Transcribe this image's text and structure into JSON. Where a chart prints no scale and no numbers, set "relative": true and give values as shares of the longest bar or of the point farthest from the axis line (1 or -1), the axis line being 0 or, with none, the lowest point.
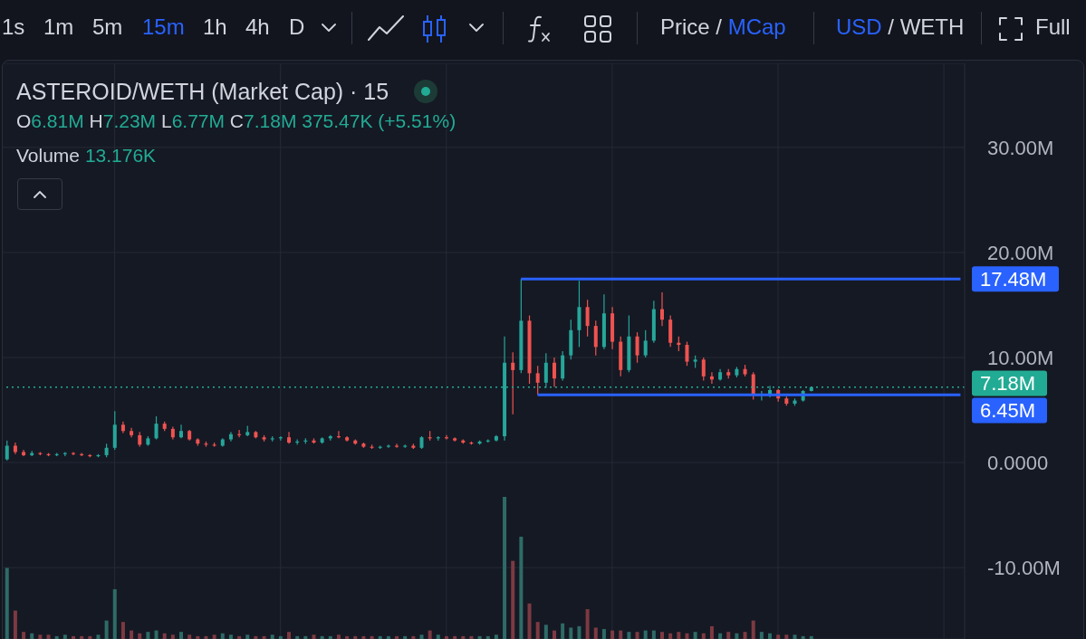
{
  "chart_data": [
    {
      "type": "candlestick",
      "title": "ASTEROID/WETH (Market Cap) · 15",
      "subtitle": "O6.81M H7.23M L6.77M C7.18M 375.47K (+5.51%)",
      "annotations": [
        "1s",
        "1m",
        "5m",
        "15m",
        "1h",
        "4h",
        "D",
        "Price / MCap",
        "USD / WETH",
        "Full",
        "Volume 13.176K"
      ],
      "categories": [
        null,
        null,
        null,
        null,
        null,
        null,
        null,
        null,
        null,
        null,
        null,
        null,
        null,
        null,
        null,
        null,
        null,
        null,
        null,
        null,
        null,
        null,
        null,
        null,
        null,
        null,
        null,
        null,
        null,
        null,
        null,
        null,
        null,
        null,
        null,
        null,
        null,
        null,
        null,
        null,
        null,
        null,
        null,
        null,
        null,
        null,
        null,
        null,
        null,
        null,
        null,
        null,
        null,
        null,
        null,
        null,
        null,
        null,
        null,
        null,
        null,
        null,
        null,
        null,
        null,
        null,
        null,
        null,
        null,
        null,
        null,
        null,
        null,
        null,
        null,
        null,
        null,
        null,
        null,
        null,
        null,
        null,
        null,
        null,
        null,
        null,
        null,
        null,
        null,
        null,
        null,
        null,
        null,
        null,
        null,
        null,
        null,
        null,
        null,
        null,
        null,
        null,
        null,
        null,
        null,
        null,
        null,
        null,
        null,
        null,
        null,
        null,
        null,
        null,
        null,
        null
      ],
      "ohlc": [
        [
          0.3,
          2.1,
          0.2,
          1.6
        ],
        [
          1.6,
          1.9,
          0.8,
          1.0
        ],
        [
          1.0,
          1.2,
          0.6,
          0.7
        ],
        [
          0.7,
          1.1,
          0.6,
          0.9
        ],
        [
          0.9,
          1.0,
          0.7,
          0.8
        ],
        [
          0.8,
          0.9,
          0.6,
          0.7
        ],
        [
          0.7,
          0.9,
          0.6,
          0.8
        ],
        [
          0.8,
          1.0,
          0.6,
          0.9
        ],
        [
          0.9,
          1.0,
          0.7,
          0.8
        ],
        [
          0.8,
          0.9,
          0.6,
          0.7
        ],
        [
          0.7,
          0.8,
          0.5,
          0.6
        ],
        [
          0.6,
          0.8,
          0.5,
          0.7
        ],
        [
          0.7,
          1.8,
          0.5,
          1.4
        ],
        [
          1.4,
          4.9,
          1.2,
          3.6
        ],
        [
          3.6,
          3.9,
          2.8,
          3.0
        ],
        [
          3.0,
          3.3,
          2.4,
          2.6
        ],
        [
          2.6,
          2.9,
          1.5,
          1.7
        ],
        [
          1.7,
          2.5,
          1.6,
          2.3
        ],
        [
          2.3,
          4.4,
          2.2,
          3.7
        ],
        [
          3.7,
          3.9,
          3.0,
          3.2
        ],
        [
          3.2,
          3.4,
          2.2,
          2.4
        ],
        [
          2.4,
          3.6,
          2.3,
          3.0
        ],
        [
          3.0,
          3.1,
          2.1,
          2.2
        ],
        [
          2.2,
          2.3,
          1.6,
          1.8
        ],
        [
          1.8,
          2.0,
          1.5,
          1.7
        ],
        [
          1.7,
          1.9,
          1.5,
          1.6
        ],
        [
          1.6,
          2.3,
          1.5,
          2.2
        ],
        [
          2.2,
          2.9,
          2.0,
          2.7
        ],
        [
          2.7,
          3.1,
          2.4,
          2.6
        ],
        [
          2.6,
          3.5,
          2.5,
          2.9
        ],
        [
          2.9,
          3.0,
          2.3,
          2.4
        ],
        [
          2.4,
          2.6,
          2.0,
          2.2
        ],
        [
          2.2,
          2.5,
          2.0,
          2.3
        ],
        [
          2.3,
          2.5,
          2.1,
          2.4
        ],
        [
          2.4,
          2.9,
          1.8,
          1.9
        ],
        [
          1.9,
          2.2,
          1.7,
          2.0
        ],
        [
          2.0,
          2.3,
          1.8,
          2.1
        ],
        [
          2.1,
          2.3,
          1.8,
          1.9
        ],
        [
          1.9,
          2.4,
          1.8,
          2.3
        ],
        [
          2.3,
          2.6,
          2.1,
          2.5
        ],
        [
          2.5,
          3.0,
          2.3,
          2.4
        ],
        [
          2.4,
          2.5,
          2.0,
          2.1
        ],
        [
          2.1,
          2.2,
          1.7,
          1.8
        ],
        [
          1.8,
          1.9,
          1.4,
          1.5
        ],
        [
          1.5,
          1.7,
          1.3,
          1.4
        ],
        [
          1.4,
          1.6,
          1.3,
          1.5
        ],
        [
          1.5,
          1.7,
          1.4,
          1.6
        ],
        [
          1.6,
          1.8,
          1.4,
          1.5
        ],
        [
          1.5,
          1.7,
          1.4,
          1.6
        ],
        [
          1.6,
          1.8,
          1.3,
          1.4
        ],
        [
          1.4,
          2.5,
          1.3,
          2.4
        ],
        [
          2.4,
          3.0,
          2.1,
          2.3
        ],
        [
          2.3,
          2.5,
          2.1,
          2.4
        ],
        [
          2.4,
          2.6,
          2.2,
          2.3
        ],
        [
          2.3,
          2.4,
          2.0,
          2.1
        ],
        [
          2.1,
          2.2,
          1.8,
          1.9
        ],
        [
          1.9,
          2.0,
          1.7,
          1.8
        ],
        [
          1.8,
          2.1,
          1.7,
          2.0
        ],
        [
          2.0,
          2.2,
          1.9,
          2.1
        ],
        [
          2.1,
          2.6,
          2.0,
          2.5
        ],
        [
          2.5,
          12.0,
          2.1,
          9.5
        ],
        [
          9.5,
          10.5,
          4.6,
          8.8
        ],
        [
          8.8,
          17.48,
          8.5,
          13.5
        ],
        [
          13.5,
          14.0,
          7.5,
          8.5
        ],
        [
          8.5,
          9.2,
          6.45,
          7.6
        ],
        [
          7.6,
          10.4,
          7.1,
          9.5
        ],
        [
          9.5,
          10.0,
          7.2,
          8.0
        ],
        [
          8.0,
          10.6,
          7.8,
          10.2
        ],
        [
          10.2,
          13.6,
          9.8,
          12.6
        ],
        [
          12.6,
          17.3,
          11.0,
          14.8
        ],
        [
          14.8,
          15.5,
          12.0,
          13.0
        ],
        [
          13.0,
          13.5,
          10.2,
          11.0
        ],
        [
          11.0,
          16.0,
          10.8,
          14.2
        ],
        [
          14.2,
          14.8,
          10.8,
          11.5
        ],
        [
          11.5,
          12.0,
          8.2,
          8.8
        ],
        [
          8.8,
          14.0,
          8.6,
          12.0
        ],
        [
          12.0,
          12.4,
          9.5,
          10.2
        ],
        [
          10.2,
          12.6,
          10.0,
          11.6
        ],
        [
          11.6,
          15.4,
          11.4,
          14.6
        ],
        [
          14.6,
          16.2,
          13.0,
          13.6
        ],
        [
          13.6,
          14.0,
          11.0,
          11.4
        ],
        [
          11.4,
          12.0,
          10.6,
          11.2
        ],
        [
          11.2,
          11.5,
          9.2,
          9.6
        ],
        [
          9.6,
          10.2,
          9.0,
          9.8
        ],
        [
          9.8,
          10.0,
          7.8,
          8.2
        ],
        [
          8.2,
          8.6,
          7.5,
          7.9
        ],
        [
          7.9,
          8.9,
          7.8,
          8.6
        ],
        [
          8.6,
          8.9,
          8.0,
          8.3
        ],
        [
          8.3,
          9.1,
          8.1,
          8.9
        ],
        [
          8.9,
          9.3,
          8.2,
          8.4
        ],
        [
          8.4,
          8.6,
          6.0,
          6.4
        ],
        [
          6.4,
          6.8,
          5.9,
          6.5
        ],
        [
          6.5,
          7.3,
          6.2,
          6.9
        ],
        [
          6.9,
          7.0,
          5.8,
          6.1
        ],
        [
          6.1,
          6.3,
          5.4,
          5.6
        ],
        [
          5.6,
          6.1,
          5.4,
          5.9
        ],
        [
          5.9,
          6.9,
          5.8,
          6.81
        ],
        [
          6.81,
          7.23,
          6.77,
          7.18
        ],
        null,
        null,
        null,
        null,
        null,
        null,
        null,
        null,
        null,
        null,
        null,
        null,
        null,
        null,
        null,
        null,
        null,
        null
      ],
      "colors": [
        "#26a69a",
        "#ef5350",
        "#ef5350",
        "#26a69a",
        "#ef5350",
        "#ef5350",
        "#26a69a",
        "#26a69a",
        "#ef5350",
        "#ef5350",
        "#ef5350",
        "#26a69a",
        "#26a69a",
        "#26a69a",
        "#ef5350",
        "#ef5350",
        "#ef5350",
        "#26a69a",
        "#26a69a",
        "#ef5350",
        "#ef5350",
        "#26a69a",
        "#ef5350",
        "#ef5350",
        "#ef5350",
        "#ef5350",
        "#26a69a",
        "#26a69a",
        "#ef5350",
        "#26a69a",
        "#ef5350",
        "#ef5350",
        "#26a69a",
        "#26a69a",
        "#ef5350",
        "#26a69a",
        "#26a69a",
        "#ef5350",
        "#26a69a",
        "#26a69a",
        "#ef5350",
        "#ef5350",
        "#ef5350",
        "#ef5350",
        "#ef5350",
        "#26a69a",
        "#26a69a",
        "#ef5350",
        "#26a69a",
        "#ef5350",
        "#26a69a",
        "#ef5350",
        "#26a69a",
        "#ef5350",
        "#ef5350",
        "#ef5350",
        "#ef5350",
        "#26a69a",
        "#26a69a",
        "#26a69a",
        "#26a69a",
        "#ef5350",
        "#26a69a",
        "#ef5350",
        "#ef5350",
        "#26a69a",
        "#ef5350",
        "#26a69a",
        "#26a69a",
        "#26a69a",
        "#ef5350",
        "#ef5350",
        "#26a69a",
        "#ef5350",
        "#ef5350",
        "#26a69a",
        "#ef5350",
        "#26a69a",
        "#26a69a",
        "#ef5350",
        "#ef5350",
        "#ef5350",
        "#ef5350",
        "#26a69a",
        "#ef5350",
        "#ef5350",
        "#26a69a",
        "#ef5350",
        "#26a69a",
        "#ef5350",
        "#ef5350",
        "#26a69a",
        "#26a69a",
        "#ef5350",
        "#ef5350",
        "#26a69a",
        "#26a69a",
        "#26a69a",
        null,
        null,
        null,
        null,
        null,
        null,
        null,
        null,
        null,
        null,
        null,
        null,
        null,
        null,
        null,
        null,
        null,
        null
      ],
      "ylim": [
        -16.8,
        38
      ],
      "yticks": [
        {
          "value": -10,
          "label": "-10.00M"
        },
        {
          "value": 0,
          "label": "0.0000"
        },
        {
          "value": 10,
          "label": "10.00M"
        },
        {
          "value": 20,
          "label": "20.00M"
        },
        {
          "value": 30,
          "label": "30.00M"
        }
      ],
      "ref_lines": [
        {
          "axis": "y",
          "value": 17.48,
          "label": "17.48M",
          "color": "#2962ff",
          "line_style": "solid"
        },
        {
          "axis": "y",
          "value": 7.18,
          "label": "7.18M",
          "color": "#22ab94",
          "line_style": "dotted"
        },
        {
          "axis": "y",
          "value": 6.45,
          "label": "6.45M",
          "color": "#2962ff",
          "line_style": "solid"
        }
      ],
      "grid": true,
      "tick_labels": "y"
    },
    {
      "type": "bar",
      "relative": true,
      "tick_labels": false,
      "categories": [
        null,
        null,
        null,
        null,
        null,
        null,
        null,
        null,
        null,
        null,
        null,
        null,
        null,
        null,
        null,
        null,
        null,
        null,
        null,
        null,
        null,
        null,
        null,
        null,
        null,
        null,
        null,
        null,
        null,
        null,
        null,
        null,
        null,
        null,
        null,
        null,
        null,
        null,
        null,
        null,
        null,
        null,
        null,
        null,
        null,
        null,
        null,
        null,
        null,
        null,
        null,
        null,
        null,
        null,
        null,
        null,
        null,
        null,
        null,
        null,
        null,
        null,
        null,
        null,
        null,
        null,
        null,
        null,
        null,
        null,
        null,
        null,
        null,
        null,
        null,
        null,
        null,
        null,
        null,
        null,
        null,
        null,
        null,
        null,
        null,
        null,
        null,
        null,
        null,
        null,
        null,
        null,
        null,
        null,
        null,
        null,
        null,
        null,
        null,
        null,
        null,
        null,
        null,
        null,
        null,
        null,
        null,
        null,
        null,
        null,
        null,
        null,
        null,
        null,
        null,
        null
      ],
      "values": [
        0.5,
        0.2,
        0.05,
        0.04,
        0.03,
        0.03,
        0.02,
        0.03,
        0.02,
        0.02,
        0.02,
        0.03,
        0.13,
        0.35,
        0.12,
        0.06,
        0.04,
        0.05,
        0.06,
        0.04,
        0.03,
        0.05,
        0.03,
        0.02,
        0.02,
        0.03,
        0.04,
        0.03,
        0.02,
        0.03,
        0.02,
        0.02,
        0.03,
        0.02,
        0.05,
        0.02,
        0.02,
        0.03,
        0.02,
        0.02,
        0.03,
        0.02,
        0.02,
        0.02,
        0.02,
        0.02,
        0.02,
        0.02,
        0.02,
        0.02,
        0.03,
        0.06,
        0.03,
        0.02,
        0.02,
        0.02,
        0.02,
        0.02,
        0.02,
        0.03,
        1,
        0.55,
        0.72,
        0.25,
        0.12,
        0.1,
        0.06,
        0.11,
        0.08,
        0.09,
        0.21,
        0.08,
        0.07,
        0.06,
        0.06,
        0.05,
        0.05,
        0.06,
        0.06,
        0.05,
        0.04,
        0.05,
        0.04,
        0.05,
        0.04,
        0.09,
        0.04,
        0.05,
        0.04,
        0.05,
        0.13,
        0.05,
        0.04,
        0.03,
        0.03,
        0.03,
        0.02,
        0.02,
        null,
        null,
        null,
        null,
        null,
        null,
        null,
        null,
        null,
        null,
        null,
        null,
        null,
        null,
        null,
        null,
        null,
        null
      ],
      "colors": [
        "#2e6b67",
        "#7d3a42",
        "#7d3a42",
        "#2e6b67",
        "#7d3a42",
        "#7d3a42",
        "#2e6b67",
        "#2e6b67",
        "#7d3a42",
        "#7d3a42",
        "#7d3a42",
        "#2e6b67",
        "#2e6b67",
        "#2e6b67",
        "#7d3a42",
        "#7d3a42",
        "#7d3a42",
        "#2e6b67",
        "#2e6b67",
        "#7d3a42",
        "#7d3a42",
        "#2e6b67",
        "#7d3a42",
        "#7d3a42",
        "#7d3a42",
        "#7d3a42",
        "#2e6b67",
        "#2e6b67",
        "#7d3a42",
        "#2e6b67",
        "#7d3a42",
        "#7d3a42",
        "#2e6b67",
        "#2e6b67",
        "#7d3a42",
        "#2e6b67",
        "#2e6b67",
        "#7d3a42",
        "#2e6b67",
        "#2e6b67",
        "#7d3a42",
        "#7d3a42",
        "#7d3a42",
        "#7d3a42",
        "#7d3a42",
        "#2e6b67",
        "#2e6b67",
        "#7d3a42",
        "#2e6b67",
        "#7d3a42",
        "#2e6b67",
        "#7d3a42",
        "#2e6b67",
        "#7d3a42",
        "#7d3a42",
        "#7d3a42",
        "#7d3a42",
        "#2e6b67",
        "#2e6b67",
        "#2e6b67",
        "#2e6b67",
        "#7d3a42",
        "#2e6b67",
        "#7d3a42",
        "#7d3a42",
        "#2e6b67",
        "#7d3a42",
        "#2e6b67",
        "#2e6b67",
        "#2e6b67",
        "#7d3a42",
        "#7d3a42",
        "#2e6b67",
        "#7d3a42",
        "#7d3a42",
        "#2e6b67",
        "#7d3a42",
        "#2e6b67",
        "#2e6b67",
        "#7d3a42",
        "#7d3a42",
        "#7d3a42",
        "#7d3a42",
        "#2e6b67",
        "#7d3a42",
        "#7d3a42",
        "#2e6b67",
        "#7d3a42",
        "#2e6b67",
        "#7d3a42",
        "#7d3a42",
        "#2e6b67",
        "#2e6b67",
        "#7d3a42",
        "#7d3a42",
        "#2e6b67",
        "#2e6b67",
        "#2e6b67",
        null,
        null,
        null,
        null,
        null,
        null,
        null,
        null,
        null,
        null,
        null,
        null,
        null,
        null,
        null,
        null,
        null,
        null
      ]
    }
  ]
}
